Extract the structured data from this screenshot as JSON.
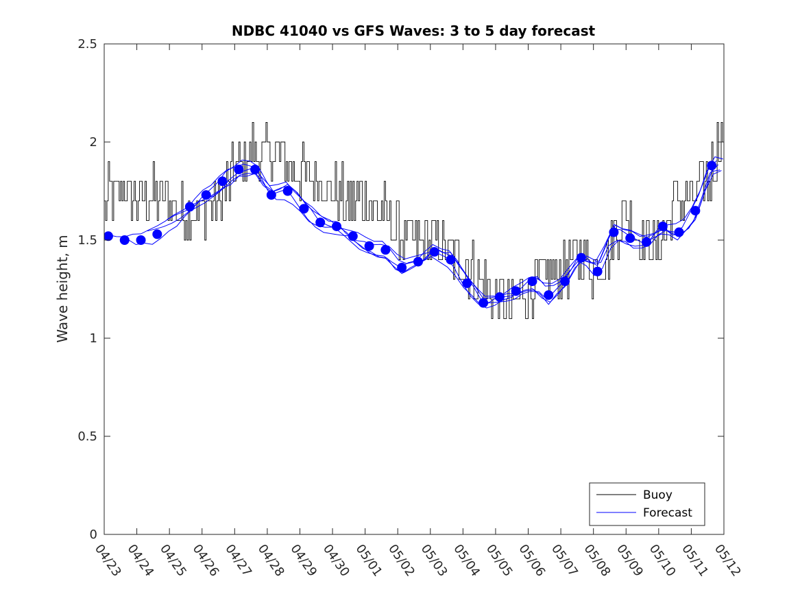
{
  "chart_data": {
    "type": "line",
    "title": "NDBC 41040 vs GFS Waves: 3 to 5 day forecast",
    "xlabel": "",
    "ylabel": "Wave height, m",
    "ylim": [
      0,
      2.5
    ],
    "yticks": [
      "0",
      "0.5",
      "1",
      "1.5",
      "2",
      "2.5"
    ],
    "xlim": [
      "04/23 00:00",
      "05/12 00:00"
    ],
    "xticks": [
      "04/23",
      "04/24",
      "04/25",
      "04/26",
      "04/27",
      "04/28",
      "04/29",
      "04/30",
      "05/01",
      "05/02",
      "05/03",
      "05/04",
      "05/05",
      "05/06",
      "05/07",
      "05/08",
      "05/09",
      "05/10",
      "05/11",
      "05/12"
    ],
    "grid": false,
    "legend_position": "bottom-right",
    "series": [
      {
        "name": "Buoy",
        "color": "#000000",
        "style": "thin noisy line, 0.1 m quantized",
        "x": [
          "04/23 00:00",
          "04/23 12:00",
          "04/24 00:00",
          "04/24 12:00",
          "04/25 00:00",
          "04/25 12:00",
          "04/26 00:00",
          "04/26 12:00",
          "04/27 00:00",
          "04/27 12:00",
          "04/28 00:00",
          "04/28 12:00",
          "04/29 00:00",
          "04/29 12:00",
          "04/30 00:00",
          "04/30 12:00",
          "05/01 00:00",
          "05/01 12:00",
          "05/02 00:00",
          "05/02 12:00",
          "05/03 00:00",
          "05/03 12:00",
          "05/04 00:00",
          "05/04 12:00",
          "05/05 00:00",
          "05/05 12:00",
          "05/06 00:00",
          "05/06 12:00",
          "05/07 00:00",
          "05/07 12:00",
          "05/08 00:00",
          "05/08 12:00",
          "05/09 00:00",
          "05/09 12:00",
          "05/10 00:00",
          "05/10 12:00",
          "05/11 00:00",
          "05/11 12:00",
          "05/12 00:00"
        ],
        "y": [
          1.7,
          1.75,
          1.7,
          1.72,
          1.7,
          1.65,
          1.65,
          1.7,
          1.85,
          1.95,
          1.95,
          1.9,
          1.85,
          1.8,
          1.75,
          1.7,
          1.7,
          1.65,
          1.55,
          1.5,
          1.5,
          1.45,
          1.4,
          1.3,
          1.2,
          1.15,
          1.25,
          1.3,
          1.35,
          1.4,
          1.35,
          1.45,
          1.65,
          1.5,
          1.45,
          1.7,
          1.7,
          1.8,
          2.1
        ]
      },
      {
        "name": "Forecast",
        "color": "#0000ff",
        "style": "thin line (overlapping forecast runs), filled circle markers",
        "x": [
          "04/23 03:00",
          "04/23 15:00",
          "04/24 03:00",
          "04/24 15:00",
          "04/25 15:00",
          "04/26 03:00",
          "04/26 15:00",
          "04/27 03:00",
          "04/27 15:00",
          "04/28 03:00",
          "04/28 15:00",
          "04/29 03:00",
          "04/29 15:00",
          "04/30 03:00",
          "04/30 15:00",
          "05/01 03:00",
          "05/01 15:00",
          "05/02 03:00",
          "05/02 15:00",
          "05/03 03:00",
          "05/03 15:00",
          "05/04 03:00",
          "05/04 15:00",
          "05/05 03:00",
          "05/05 15:00",
          "05/06 03:00",
          "05/06 15:00",
          "05/07 03:00",
          "05/07 15:00",
          "05/08 03:00",
          "05/08 15:00",
          "05/09 03:00",
          "05/09 15:00",
          "05/10 03:00",
          "05/10 15:00",
          "05/11 03:00",
          "05/11 15:00"
        ],
        "y": [
          1.52,
          1.5,
          1.5,
          1.53,
          1.67,
          1.73,
          1.8,
          1.86,
          1.86,
          1.73,
          1.75,
          1.66,
          1.59,
          1.57,
          1.52,
          1.47,
          1.45,
          1.36,
          1.39,
          1.44,
          1.4,
          1.28,
          1.18,
          1.21,
          1.24,
          1.29,
          1.22,
          1.29,
          1.41,
          1.34,
          1.54,
          1.51,
          1.49,
          1.57,
          1.54,
          1.65,
          1.88
        ]
      }
    ]
  }
}
